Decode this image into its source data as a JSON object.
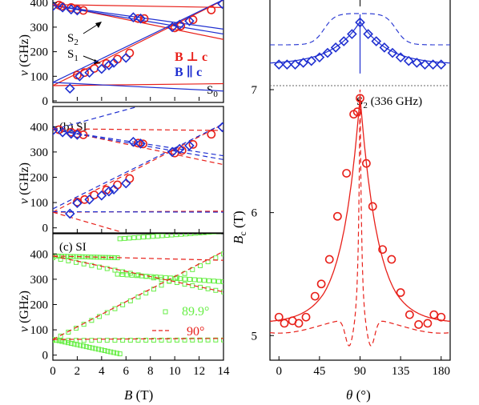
{
  "colors": {
    "red": "#e8201a",
    "blue": "#1f2fd0",
    "green": "#66ee44",
    "axis": "#000000",
    "dotted": "#666666"
  },
  "chart_data": [
    {
      "id": "a",
      "type": "scatter",
      "panel_label": "",
      "xlim": [
        0,
        14
      ],
      "ylim": [
        0,
        430
      ],
      "xticks": [
        0,
        2,
        4,
        6,
        8,
        10,
        12,
        14
      ],
      "yticks": [
        0,
        100,
        200,
        300,
        400
      ],
      "ylabel": "ν (GHz)",
      "legend": [
        {
          "label": "B ⊥ c",
          "color": "red"
        },
        {
          "label": "B ∥ c",
          "color": "blue"
        }
      ],
      "annotations": {
        "s2": "S2",
        "s1": "S1",
        "s0": "S0"
      },
      "series": [
        {
          "name": "B ⊥ c",
          "color": "red",
          "marker": "circle",
          "x": [
            0.5,
            0.7,
            1.5,
            2.0,
            2.5,
            2.0,
            2.6,
            3.4,
            4.4,
            5.3,
            6.3,
            7.0,
            7.5,
            10.0,
            10.5,
            11.5,
            13.0
          ],
          "y": [
            390,
            385,
            380,
            372,
            368,
            105,
            115,
            132,
            152,
            170,
            195,
            335,
            335,
            297,
            305,
            330,
            370
          ]
        },
        {
          "name": "B ∥ c",
          "color": "blue",
          "marker": "diamond",
          "x": [
            0.0,
            0.8,
            1.5,
            2.0,
            1.4,
            2.2,
            3.0,
            4.0,
            4.6,
            5.0,
            6.0,
            6.6,
            7.2,
            9.8,
            10.4,
            11.2,
            13.9
          ],
          "y": [
            385,
            380,
            372,
            368,
            50,
            100,
            115,
            130,
            145,
            155,
            175,
            340,
            335,
            300,
            310,
            325,
            395
          ]
        }
      ],
      "fit_lines": [
        {
          "color": "red",
          "x": [
            0,
            14
          ],
          "y": [
            392,
            250
          ]
        },
        {
          "color": "red",
          "x": [
            0,
            14
          ],
          "y": [
            392,
            380
          ]
        },
        {
          "color": "red",
          "x": [
            0,
            14
          ],
          "y": [
            62,
            410
          ]
        },
        {
          "color": "red",
          "x": [
            0,
            14
          ],
          "y": [
            62,
            70
          ]
        },
        {
          "color": "blue",
          "x": [
            0,
            14
          ],
          "y": [
            388,
            272
          ]
        },
        {
          "color": "blue",
          "x": [
            0,
            14
          ],
          "y": [
            388,
            292
          ]
        },
        {
          "color": "blue",
          "x": [
            0,
            14
          ],
          "y": [
            75,
            412
          ]
        },
        {
          "color": "blue",
          "x": [
            0,
            14
          ],
          "y": [
            75,
            40
          ]
        }
      ]
    },
    {
      "id": "b",
      "type": "scatter",
      "panel_label": "(b) SI",
      "xlim": [
        0,
        14
      ],
      "ylim": [
        -20,
        480
      ],
      "xticks": [
        0,
        2,
        4,
        6,
        8,
        10,
        12,
        14
      ],
      "yticks": [
        0,
        100,
        200,
        300,
        400
      ],
      "ylabel": "ν (GHz)",
      "series": [
        {
          "name": "B ⊥ c",
          "color": "red",
          "marker": "circle",
          "x": [
            0.5,
            1.5,
            2.0,
            2.5,
            2.0,
            2.6,
            3.4,
            4.4,
            5.3,
            6.3,
            7.0,
            7.4,
            10.0,
            10.6,
            11.5,
            13.0
          ],
          "y": [
            388,
            378,
            372,
            368,
            102,
            112,
            130,
            150,
            170,
            195,
            335,
            332,
            296,
            306,
            330,
            370
          ]
        },
        {
          "name": "B ∥ c",
          "color": "blue",
          "marker": "diamond",
          "x": [
            0.0,
            0.8,
            1.5,
            2.0,
            1.4,
            2.0,
            3.0,
            4.0,
            4.6,
            5.0,
            6.0,
            6.6,
            7.2,
            9.8,
            10.4,
            11.2,
            13.9
          ],
          "y": [
            385,
            378,
            372,
            368,
            56,
            98,
            112,
            128,
            144,
            152,
            176,
            340,
            333,
            300,
            312,
            325,
            398
          ]
        }
      ],
      "fit_lines": [
        {
          "color": "red",
          "dash": true,
          "x": [
            0,
            14
          ],
          "y": [
            392,
            250
          ]
        },
        {
          "color": "red",
          "dash": true,
          "x": [
            0,
            14
          ],
          "y": [
            392,
            385
          ]
        },
        {
          "color": "red",
          "dash": true,
          "x": [
            0,
            14
          ],
          "y": [
            62,
            410
          ]
        },
        {
          "color": "red",
          "dash": true,
          "x": [
            0,
            5.5
          ],
          "y": [
            62,
            -15
          ]
        },
        {
          "color": "red",
          "dash": true,
          "x": [
            0,
            14
          ],
          "y": [
            62,
            66
          ]
        },
        {
          "color": "blue",
          "dash": true,
          "x": [
            0,
            14
          ],
          "y": [
            388,
            270
          ]
        },
        {
          "color": "blue",
          "dash": true,
          "x": [
            0,
            14
          ],
          "y": [
            388,
            285
          ]
        },
        {
          "color": "blue",
          "dash": true,
          "x": [
            0,
            7
          ],
          "y": [
            388,
            480
          ]
        },
        {
          "color": "blue",
          "dash": true,
          "x": [
            0,
            14
          ],
          "y": [
            75,
            412
          ]
        },
        {
          "color": "blue",
          "dash": true,
          "x": [
            0,
            14
          ],
          "y": [
            64,
            62
          ]
        }
      ]
    },
    {
      "id": "c",
      "type": "scatter",
      "panel_label": "(c) SI",
      "xlim": [
        0,
        14
      ],
      "ylim": [
        -20,
        480
      ],
      "xticks": [
        0,
        2,
        4,
        6,
        8,
        10,
        12,
        14
      ],
      "yticks": [
        0,
        100,
        200,
        300,
        400
      ],
      "ylabel": "ν (GHz)",
      "xlabel": "B (T)",
      "legend": [
        {
          "label": "89.9°",
          "color": "green",
          "marker": "square"
        },
        {
          "label": "90°",
          "color": "red",
          "dash": true
        }
      ],
      "green_bands": [
        {
          "x": [
            0,
            5.3
          ],
          "y": [
            392,
            385
          ]
        },
        {
          "x": [
            5.3,
            14
          ],
          "y": [
            320,
            290
          ]
        },
        {
          "x": [
            0,
            14
          ],
          "y": [
            385,
            250
          ]
        },
        {
          "x": [
            0,
            14
          ],
          "y": [
            60,
            400
          ]
        },
        {
          "x": [
            0,
            5.5
          ],
          "y": [
            62,
            5
          ]
        },
        {
          "x": [
            0,
            14
          ],
          "y": [
            58,
            60
          ]
        },
        {
          "x": [
            5.5,
            14
          ],
          "y": [
            460,
            490
          ]
        }
      ],
      "fit_lines": [
        {
          "color": "red",
          "dash": true,
          "x": [
            0,
            14
          ],
          "y": [
            392,
            250
          ]
        },
        {
          "color": "red",
          "dash": true,
          "x": [
            0,
            14
          ],
          "y": [
            392,
            375
          ]
        },
        {
          "color": "red",
          "dash": true,
          "x": [
            0,
            14
          ],
          "y": [
            62,
            410
          ]
        },
        {
          "color": "red",
          "dash": true,
          "x": [
            0,
            14
          ],
          "y": [
            62,
            66
          ]
        }
      ]
    },
    {
      "id": "d",
      "type": "scatter",
      "panel_label": "S2 (336 GHz)",
      "xlim": [
        -10,
        190
      ],
      "ylim": [
        4.8,
        7.0
      ],
      "xticks": [
        0,
        45,
        90,
        135,
        180
      ],
      "yticks": [
        5,
        6,
        7
      ],
      "xlabel": "θ (°)",
      "ylabel": "Bc (T)",
      "series": [
        {
          "name": "S2 (336 GHz)",
          "color": "red",
          "marker": "circle",
          "x": [
            0,
            6,
            15,
            22,
            30,
            40,
            47,
            56,
            65,
            75,
            83,
            87,
            90,
            97,
            104,
            115,
            125,
            135,
            145,
            155,
            165,
            172,
            180
          ],
          "y": [
            5.15,
            5.1,
            5.12,
            5.1,
            5.15,
            5.32,
            5.42,
            5.62,
            5.97,
            6.32,
            6.8,
            6.82,
            6.93,
            6.4,
            6.05,
            5.7,
            5.62,
            5.35,
            5.17,
            5.09,
            5.1,
            5.17,
            5.15
          ]
        }
      ],
      "fit_lines": [
        {
          "color": "red",
          "style": "solid",
          "function": "cusp_solid"
        },
        {
          "color": "red",
          "style": "dash",
          "function": "cusp_dash"
        }
      ]
    },
    {
      "id": "top_right",
      "type": "scatter",
      "xlim": [
        -10,
        190
      ],
      "ylim": [
        0,
        1
      ],
      "series": [
        {
          "color": "blue",
          "marker": "diamond",
          "x": [
            0,
            9,
            18,
            27,
            36,
            45,
            54,
            63,
            72,
            81,
            90,
            99,
            108,
            117,
            126,
            135,
            144,
            153,
            162,
            171,
            180
          ],
          "y": [
            0.28,
            0.28,
            0.28,
            0.3,
            0.32,
            0.36,
            0.41,
            0.47,
            0.54,
            0.62,
            0.75,
            0.62,
            0.54,
            0.47,
            0.41,
            0.36,
            0.32,
            0.3,
            0.28,
            0.28,
            0.28
          ]
        }
      ]
    }
  ]
}
